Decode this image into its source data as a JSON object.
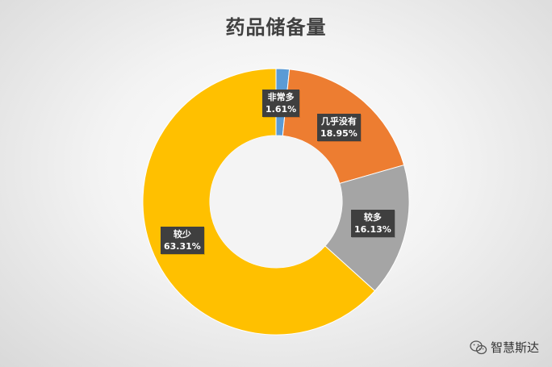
{
  "chart_data": {
    "type": "pie",
    "title": "药品储备量",
    "categories": [
      "非常多",
      "几乎没有",
      "较多",
      "较少"
    ],
    "values": [
      1.61,
      18.95,
      16.13,
      63.31
    ],
    "value_labels": [
      "1.61%",
      "18.95%",
      "16.13%",
      "63.31%"
    ],
    "colors": [
      "#5b9bd5",
      "#ed7d31",
      "#a5a5a5",
      "#ffc000"
    ],
    "donut": true,
    "legend": "none"
  },
  "watermark": {
    "text": "智慧斯达",
    "icon": "wechat-icon"
  }
}
